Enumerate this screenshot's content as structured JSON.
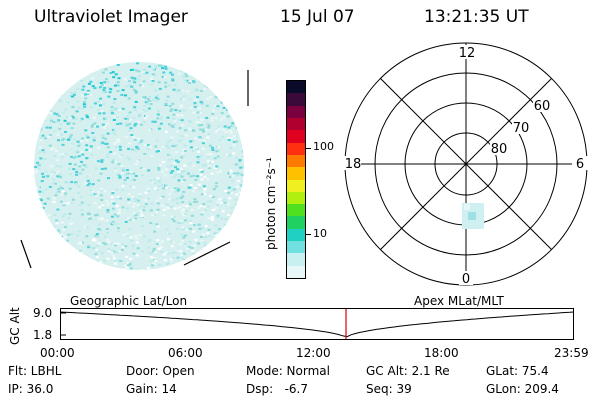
{
  "header": {
    "title": "Ultraviolet Imager",
    "date": "15 Jul 07",
    "time": "13:21:35 UT"
  },
  "colorbar": {
    "unit_label": "photon cm⁻²s⁻¹",
    "ticks": [
      "100",
      "10"
    ],
    "colors": [
      "#0a0a2a",
      "#3a0a3a",
      "#7a0040",
      "#b00030",
      "#e00020",
      "#ff3010",
      "#ff7a00",
      "#ffc000",
      "#f0f020",
      "#b0f010",
      "#50e020",
      "#20d060",
      "#20d0c0",
      "#70e0e0",
      "#c8f0f0",
      "#e8f8f8"
    ]
  },
  "polar_plot": {
    "mlt_labels": {
      "top": "12",
      "right": "6",
      "bottom": "0",
      "left": "18"
    },
    "lat_labels": [
      "60",
      "70",
      "80"
    ]
  },
  "timeline": {
    "ylabel": "GC Alt",
    "y_ticks": [
      "9.0",
      "1.8"
    ],
    "left_title": "Geographic Lat/Lon",
    "right_title": "Apex MLat/MLT",
    "x_ticks": [
      "00:00",
      "06:00",
      "12:00",
      "18:00",
      "23:59"
    ],
    "current_time_fraction": 0.5565
  },
  "footer": {
    "row1": [
      "Flt: LBHL",
      "Door: Open",
      "Mode: Normal",
      "GC Alt: 2.1 Re",
      "GLat: 75.4"
    ],
    "row2": [
      "IP: 36.0",
      "Gain: 14",
      "Dsp:   -6.7",
      "Seq: 39",
      "GLon: 209.4"
    ]
  }
}
